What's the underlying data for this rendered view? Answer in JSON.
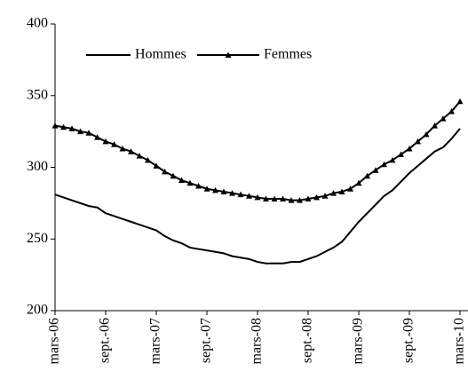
{
  "chart_data": {
    "type": "line",
    "categories": [
      "mars-06",
      null,
      null,
      null,
      null,
      null,
      "sept.-06",
      null,
      null,
      null,
      null,
      null,
      "mars-07",
      null,
      null,
      null,
      null,
      null,
      "sept.-07",
      null,
      null,
      null,
      null,
      null,
      "mars-08",
      null,
      null,
      null,
      null,
      null,
      "sept.-08",
      null,
      null,
      null,
      null,
      null,
      "mars-09",
      null,
      null,
      null,
      null,
      null,
      "sept.-09",
      null,
      null,
      null,
      null,
      null,
      "mars-10"
    ],
    "series": [
      {
        "name": "Hommes",
        "color": "#000000",
        "values": [
          281,
          279,
          277,
          275,
          273,
          272,
          268,
          266,
          264,
          262,
          260,
          258,
          256,
          252,
          249,
          247,
          244,
          243,
          242,
          241,
          240,
          238,
          237,
          236,
          234,
          233,
          233,
          233,
          234,
          234,
          236,
          238,
          241,
          244,
          248,
          255,
          262,
          268,
          274,
          280,
          284,
          290,
          296,
          301,
          306,
          311,
          314,
          320,
          327
        ]
      },
      {
        "name": "Femmes",
        "color": "#000000",
        "marker": "triangle",
        "values": [
          329,
          328,
          327,
          325,
          324,
          321,
          318,
          316,
          313,
          311,
          308,
          305,
          301,
          297,
          294,
          291,
          289,
          287,
          285,
          284,
          283,
          282,
          281,
          280,
          279,
          278,
          278,
          278,
          277,
          277,
          278,
          279,
          280,
          282,
          283,
          285,
          289,
          294,
          298,
          302,
          305,
          309,
          313,
          318,
          323,
          329,
          334,
          339,
          346
        ]
      }
    ],
    "ylim": [
      200,
      400
    ],
    "yticks": [
      200,
      250,
      300,
      350,
      400
    ],
    "grid": false
  }
}
